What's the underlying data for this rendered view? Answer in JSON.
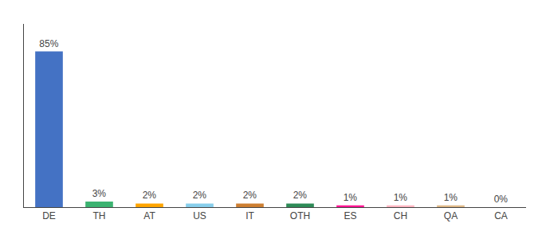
{
  "chart_data": {
    "type": "bar",
    "categories": [
      "DE",
      "TH",
      "AT",
      "US",
      "IT",
      "OTH",
      "ES",
      "CH",
      "QA",
      "CA"
    ],
    "values": [
      85,
      3,
      2,
      2,
      2,
      2,
      1,
      1,
      1,
      0
    ],
    "value_labels": [
      "85%",
      "3%",
      "2%",
      "2%",
      "2%",
      "2%",
      "1%",
      "1%",
      "1%",
      "0%"
    ],
    "data_labels": true,
    "colors": [
      "#4472C4",
      "#3CB371",
      "#FFA500",
      "#87CEEB",
      "#CD7F32",
      "#2E8B57",
      "#FF1493",
      "#FFB6C1",
      "#DEB887",
      "#D3D3D3"
    ],
    "ylim": [
      0,
      100
    ],
    "grid": false,
    "tick_labels": "x"
  }
}
